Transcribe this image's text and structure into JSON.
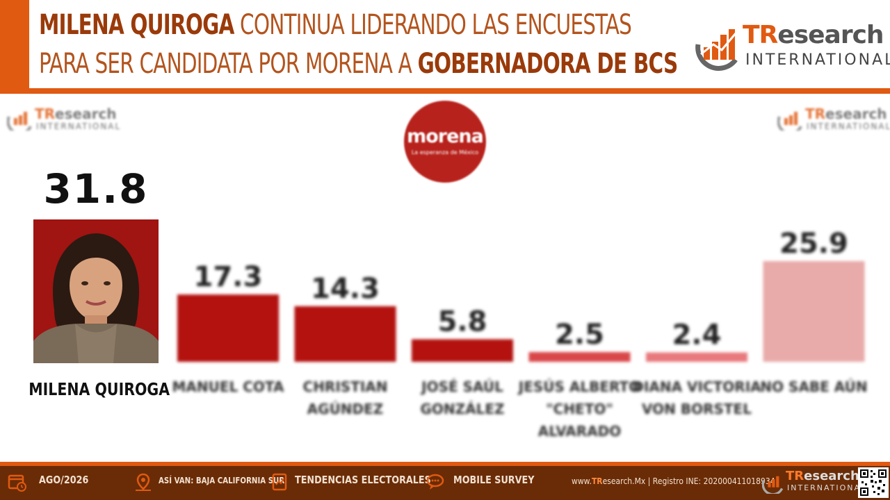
{
  "header": {
    "title_line1_bold": "MILENA QUIROGA",
    "title_line1_rest": " CONTINUA LIDERANDO LAS ENCUESTAS",
    "title_line2_rest": "PARA SER CANDIDATA POR MORENA A ",
    "title_line2_bold": "GOBERNADORA DE BCS"
  },
  "brand": {
    "logo_tr_prefix": "TR",
    "logo_tr_rest": "esearch",
    "logo_sub": "INTERNATIONAL",
    "accent_color": "#e05a12",
    "dark_color": "#6a2c06"
  },
  "party_logo": {
    "name": "morena",
    "tagline": "La esperanza de México",
    "color": "#b8221c"
  },
  "leader": {
    "value": "31.8",
    "name": "MILENA QUIROGA"
  },
  "chart_data": {
    "type": "bar",
    "categories": [
      "MILENA QUIROGA",
      "MANUEL COTA",
      "CHRISTIAN AGÚNDEZ",
      "JOSÉ SAÚL GONZÁLEZ",
      "JESÚS ALBERTO \"CHETO\" ALVARADO",
      "DIANA VICTORIA VON BORSTEL",
      "NO SABE AÚN"
    ],
    "values": [
      31.8,
      17.3,
      14.3,
      5.8,
      2.5,
      2.4,
      25.9
    ],
    "value_labels": [
      "31.8",
      "17.3",
      "14.3",
      "5.8",
      "2.5",
      "2.4",
      "25.9"
    ],
    "label_lines": [
      [
        "MILENA QUIROGA"
      ],
      [
        "MANUEL COTA"
      ],
      [
        "CHRISTIAN",
        "AGÚNDEZ"
      ],
      [
        "JOSÉ SAÚL",
        "GONZÁLEZ"
      ],
      [
        "JESÚS ALBERTO",
        "\"CHETO\"",
        "ALVARADO"
      ],
      [
        "DIANA VICTORIA",
        "VON BORSTEL"
      ],
      [
        "NO SABE AÚN"
      ]
    ],
    "colors": [
      "#a01412",
      "#b3120f",
      "#b3120f",
      "#b3120f",
      "#d9474a",
      "#e8797c",
      "#e9aaaa"
    ],
    "ylim": [
      0,
      35
    ],
    "grid": false,
    "legend": "none"
  },
  "footer": {
    "date": "AGO/2026",
    "location": "ASÍ VAN: BAJA CALIFORNIA SUR",
    "section": "TENDENCIAS ELECTORALES",
    "survey": "MOBILE SURVEY",
    "url_prefix": "www.",
    "url_brand": "TR",
    "url_rest": "esearch.Mx | Registro INE: 202000411018934"
  }
}
